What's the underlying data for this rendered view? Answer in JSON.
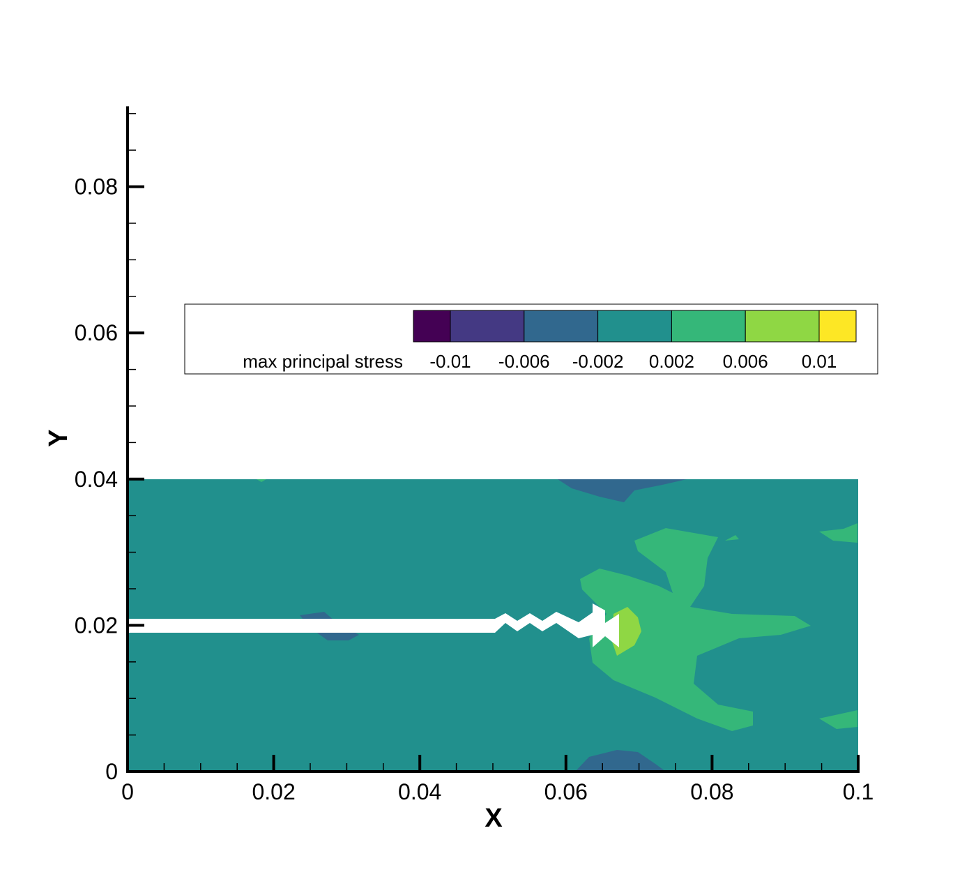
{
  "chart_data": {
    "type": "contour",
    "x_label": "X",
    "y_label": "Y",
    "xlim": [
      0,
      0.1
    ],
    "ylim": [
      0,
      0.091
    ],
    "xticks": [
      0,
      0.02,
      0.04,
      0.06,
      0.08,
      0.1
    ],
    "yticks": [
      0,
      0.02,
      0.04,
      0.06,
      0.08
    ],
    "xminorticks": [
      0.005,
      0.01,
      0.015,
      0.025,
      0.03,
      0.035,
      0.045,
      0.05,
      0.055,
      0.065,
      0.07,
      0.075,
      0.085,
      0.09,
      0.095
    ],
    "yminorticks": [
      0.005,
      0.01,
      0.015,
      0.025,
      0.03,
      0.035,
      0.045,
      0.05,
      0.055,
      0.065,
      0.07,
      0.075,
      0.085,
      0.09
    ],
    "legend_title": "max principal stress",
    "levels": [
      -0.01,
      -0.006,
      -0.002,
      0.002,
      0.006,
      0.01
    ],
    "colors": [
      "#440154",
      "#443983",
      "#31688e",
      "#21908d",
      "#35b779",
      "#8fd744",
      "#fde725"
    ]
  }
}
